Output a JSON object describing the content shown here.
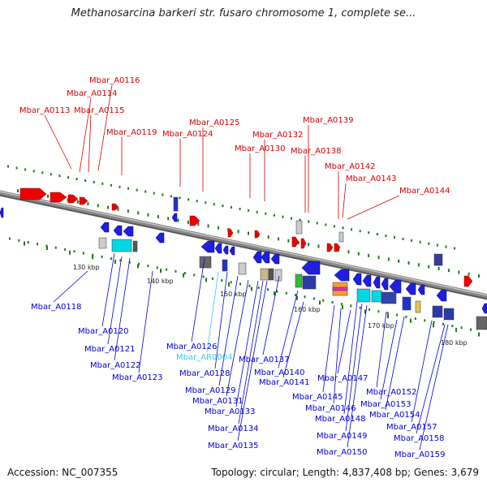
{
  "title": "Methanosarcina barkeri str. fusaro chromosome 1, complete se...",
  "footer": {
    "accession": "Accession: NC_007355",
    "summary": "Topology: circular; Length: 4,837,408 bp; Genes: 3,679"
  },
  "colors": {
    "forward_label": "#d40000",
    "reverse_label": "#0000cc",
    "rna_label": "#33ccee",
    "backbone": "#8a8a8a",
    "tick": "#1e7a1e"
  },
  "kbp_ticks": [
    "130 kbp",
    "140 kbp",
    "150 kbp",
    "160 kbp",
    "170 kbp",
    "180 kbp"
  ],
  "forward_genes": [
    "Mbar_A0113",
    "Mbar_A0114",
    "Mbar_A0115",
    "Mbar_A0116",
    "Mbar_A0119",
    "Mbar_A0124",
    "Mbar_A0125",
    "Mbar_A0130",
    "Mbar_A0132",
    "Mbar_A0138",
    "Mbar_A0139",
    "Mbar_A0142",
    "Mbar_A0143",
    "Mbar_A0144"
  ],
  "reverse_genes": [
    "Mbar_A0118",
    "Mbar_A0120",
    "Mbar_A0121",
    "Mbar_A0122",
    "Mbar_A0123",
    "Mbar_A0126",
    "Mbar_AR0004",
    "Mbar_A0128",
    "Mbar_A0129",
    "Mbar_A0131",
    "Mbar_A0133",
    "Mbar_A0134",
    "Mbar_A0135",
    "Mbar_A0137",
    "Mbar_A0140",
    "Mbar_A0141",
    "Mbar_A0145",
    "Mbar_A0146",
    "Mbar_A0147",
    "Mbar_A0148",
    "Mbar_A0149",
    "Mbar_A0150",
    "Mbar_A0152",
    "Mbar_A0153",
    "Mbar_A0154",
    "Mbar_A0157",
    "Mbar_A0158",
    "Mbar_A0159"
  ]
}
